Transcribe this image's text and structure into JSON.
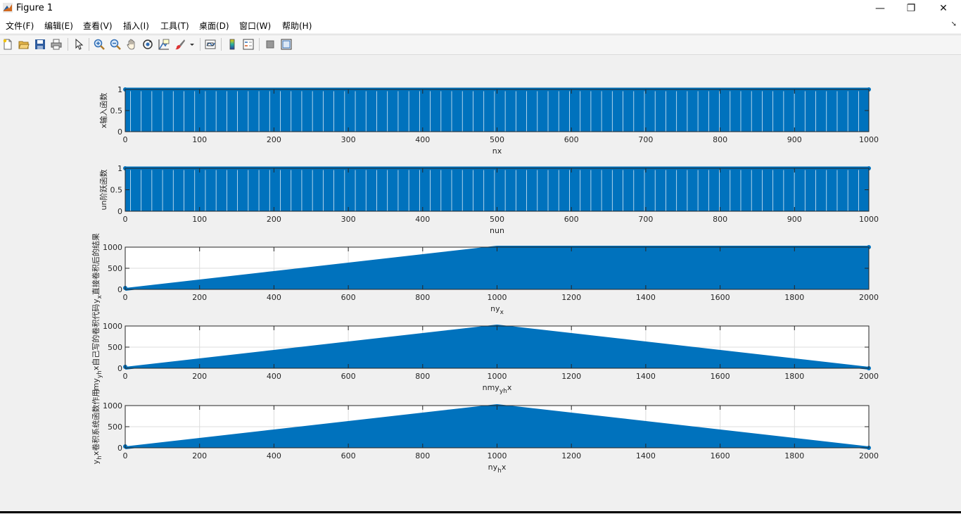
{
  "window": {
    "title": "Figure 1",
    "minimize": "—",
    "restore": "❐",
    "close": "✕"
  },
  "menu": {
    "items": [
      "文件(F)",
      "编辑(E)",
      "查看(V)",
      "插入(I)",
      "工具(T)",
      "桌面(D)",
      "窗口(W)",
      "帮助(H)"
    ],
    "overflow": "➘"
  },
  "toolbar": {
    "icons": [
      "new-figure-icon",
      "open-file-icon",
      "save-icon",
      "print-icon",
      "edit-plot-arrow-icon",
      "zoom-in-icon",
      "zoom-out-icon",
      "pan-hand-icon",
      "rotate-3d-icon",
      "data-cursor-icon",
      "brush-icon",
      "brush-dropdown-icon",
      "link-plot-icon",
      "colorbar-icon",
      "legend-icon",
      "hide-plot-tools-icon",
      "show-plot-tools-icon"
    ]
  },
  "colors": {
    "stem": "#0072bd",
    "axes_bg": "#ffffff",
    "grid": "#dcdcdc",
    "figure_bg": "#f0f0f0"
  },
  "chart_data": [
    {
      "type": "stem",
      "title": "",
      "xlabel": "nx",
      "ylabel": "x输入函数",
      "xlim": [
        0,
        1000
      ],
      "ylim": [
        0,
        1
      ],
      "xticks": [
        0,
        100,
        200,
        300,
        400,
        500,
        600,
        700,
        800,
        900,
        1000
      ],
      "yticks": [
        0,
        0.5,
        1
      ],
      "ytick_labels": [
        "0",
        "0.5",
        "1"
      ],
      "grid": false,
      "series": [
        {
          "x_start": 0,
          "x_end": 1000,
          "step": 1,
          "values": "constant",
          "value": 1
        }
      ]
    },
    {
      "type": "stem",
      "title": "",
      "xlabel": "nun",
      "ylabel": "un阶跃函数",
      "xlim": [
        0,
        1000
      ],
      "ylim": [
        0,
        1
      ],
      "xticks": [
        0,
        100,
        200,
        300,
        400,
        500,
        600,
        700,
        800,
        900,
        1000
      ],
      "yticks": [
        0,
        0.5,
        1
      ],
      "ytick_labels": [
        "0",
        "0.5",
        "1"
      ],
      "grid": false,
      "series": [
        {
          "x_start": 0,
          "x_end": 1000,
          "step": 1,
          "values": "constant",
          "value": 1
        }
      ]
    },
    {
      "type": "stem",
      "title": "",
      "xlabel": "ny",
      "xlabel_sub": "x",
      "ylabel": "y",
      "ylabel_sub": "x",
      "ylabel_rest": "直接卷积后的结果",
      "xlim": [
        0,
        2000
      ],
      "ylim": [
        0,
        1000
      ],
      "xticks": [
        0,
        200,
        400,
        600,
        800,
        1000,
        1200,
        1400,
        1600,
        1800,
        2000
      ],
      "yticks": [
        0,
        500,
        1000
      ],
      "ytick_labels": [
        "0",
        "500",
        "1000"
      ],
      "grid": true,
      "series": [
        {
          "x_start": 0,
          "x_end": 2000,
          "step": 1,
          "values": "ramp-then-flat",
          "peak_x": 1000,
          "peak_y": 1001,
          "end_y": 1001
        }
      ]
    },
    {
      "type": "stem",
      "title": "",
      "xlabel": "nmy",
      "xlabel_sub": "yh",
      "xlabel_rest": "x",
      "ylabel": "my",
      "ylabel_sub": "yh",
      "ylabel_rest": "x自己写的卷积代码",
      "xlim": [
        0,
        2000
      ],
      "ylim": [
        0,
        1000
      ],
      "xticks": [
        0,
        200,
        400,
        600,
        800,
        1000,
        1200,
        1400,
        1600,
        1800,
        2000
      ],
      "yticks": [
        0,
        500,
        1000
      ],
      "ytick_labels": [
        "0",
        "500",
        "1000"
      ],
      "grid": true,
      "series": [
        {
          "x_start": 0,
          "x_end": 2000,
          "step": 1,
          "values": "triangle",
          "peak_x": 1000,
          "peak_y": 1001,
          "end_y": 0
        }
      ]
    },
    {
      "type": "stem",
      "title": "",
      "xlabel": "ny",
      "xlabel_sub": "h",
      "xlabel_rest": "x",
      "ylabel": "y",
      "ylabel_sub": "h",
      "ylabel_rest": "x卷积系统函数作用",
      "xlim": [
        0,
        2000
      ],
      "ylim": [
        0,
        1000
      ],
      "xticks": [
        0,
        200,
        400,
        600,
        800,
        1000,
        1200,
        1400,
        1600,
        1800,
        2000
      ],
      "yticks": [
        0,
        500,
        1000
      ],
      "ytick_labels": [
        "0",
        "500",
        "1000"
      ],
      "grid": true,
      "series": [
        {
          "x_start": 0,
          "x_end": 2000,
          "step": 1,
          "values": "triangle",
          "peak_x": 1000,
          "peak_y": 1001,
          "end_y": 0
        }
      ]
    }
  ]
}
